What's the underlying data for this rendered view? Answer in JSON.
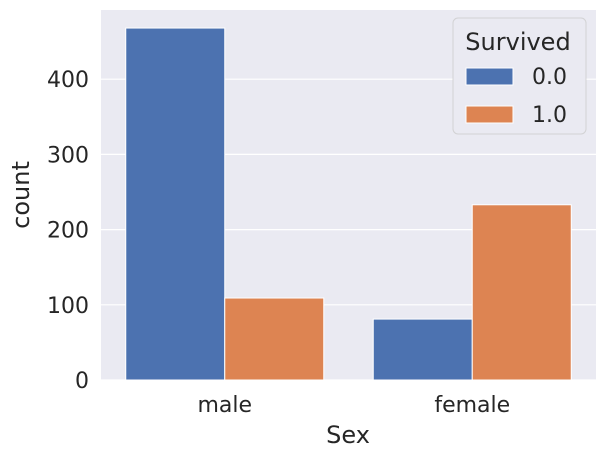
{
  "chart_data": {
    "type": "bar",
    "title": "",
    "xlabel": "Sex",
    "ylabel": "count",
    "categories": [
      "male",
      "female"
    ],
    "series": [
      {
        "name": "0.0",
        "values": [
          468,
          81
        ],
        "color": "#4c72b0"
      },
      {
        "name": "1.0",
        "values": [
          109,
          233
        ],
        "color": "#dd8452"
      }
    ],
    "ylim": [
      0,
      492
    ],
    "yticks": [
      0,
      100,
      200,
      300,
      400
    ],
    "legend": {
      "title": "Survived",
      "placement": "top-right"
    },
    "grid": true,
    "background": "#eaeaf2"
  }
}
